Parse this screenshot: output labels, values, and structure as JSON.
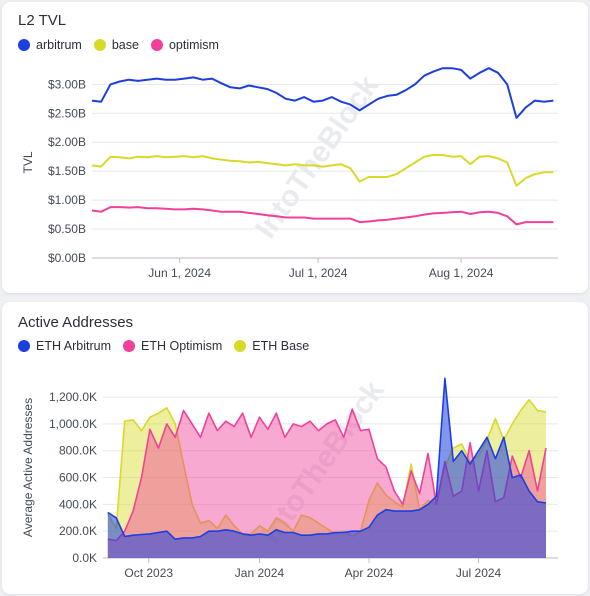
{
  "chart_data": [
    {
      "type": "line",
      "title": "L2 TVL",
      "ylabel": "TVL",
      "ylim": [
        0,
        3.3
      ],
      "yticks": [
        {
          "value": 0,
          "label": "$0.00B"
        },
        {
          "value": 0.5,
          "label": "$0.50B"
        },
        {
          "value": 1.0,
          "label": "$1.00B"
        },
        {
          "value": 1.5,
          "label": "$1.50B"
        },
        {
          "value": 2.0,
          "label": "$2.00B"
        },
        {
          "value": 2.5,
          "label": "$2.50B"
        },
        {
          "value": 3.0,
          "label": "$3.00B"
        }
      ],
      "xlim": [
        "2024-05-13",
        "2024-08-22"
      ],
      "xticks": [
        {
          "value": "2024-06-01",
          "label": "Jun 1, 2024"
        },
        {
          "value": "2024-07-01",
          "label": "Jul 1, 2024"
        },
        {
          "value": "2024-08-01",
          "label": "Aug 1, 2024"
        }
      ],
      "x": [
        "2024-05-13",
        "2024-05-15",
        "2024-05-17",
        "2024-05-19",
        "2024-05-21",
        "2024-05-23",
        "2024-05-25",
        "2024-05-27",
        "2024-05-29",
        "2024-05-31",
        "2024-06-02",
        "2024-06-04",
        "2024-06-06",
        "2024-06-08",
        "2024-06-10",
        "2024-06-12",
        "2024-06-14",
        "2024-06-16",
        "2024-06-18",
        "2024-06-20",
        "2024-06-22",
        "2024-06-24",
        "2024-06-26",
        "2024-06-28",
        "2024-06-30",
        "2024-07-02",
        "2024-07-04",
        "2024-07-06",
        "2024-07-08",
        "2024-07-10",
        "2024-07-12",
        "2024-07-14",
        "2024-07-16",
        "2024-07-18",
        "2024-07-20",
        "2024-07-22",
        "2024-07-24",
        "2024-07-26",
        "2024-07-28",
        "2024-07-30",
        "2024-08-01",
        "2024-08-03",
        "2024-08-05",
        "2024-08-07",
        "2024-08-09",
        "2024-08-11",
        "2024-08-13",
        "2024-08-15",
        "2024-08-17",
        "2024-08-19",
        "2024-08-21"
      ],
      "series": [
        {
          "name": "arbitrum",
          "color": "#1d3fe0",
          "values": [
            2.72,
            2.7,
            3.0,
            3.05,
            3.08,
            3.06,
            3.08,
            3.1,
            3.08,
            3.08,
            3.1,
            3.12,
            3.08,
            3.1,
            3.02,
            2.95,
            2.93,
            2.98,
            2.95,
            2.92,
            2.85,
            2.75,
            2.72,
            2.78,
            2.7,
            2.72,
            2.78,
            2.7,
            2.65,
            2.55,
            2.65,
            2.75,
            2.8,
            2.82,
            2.9,
            3.0,
            3.15,
            3.22,
            3.28,
            3.28,
            3.25,
            3.1,
            3.2,
            3.28,
            3.2,
            3.0,
            2.42,
            2.6,
            2.72,
            2.7,
            2.72
          ]
        },
        {
          "name": "base",
          "color": "#d9d92a",
          "values": [
            1.6,
            1.58,
            1.75,
            1.74,
            1.72,
            1.75,
            1.74,
            1.76,
            1.74,
            1.75,
            1.76,
            1.74,
            1.76,
            1.72,
            1.7,
            1.68,
            1.67,
            1.65,
            1.66,
            1.64,
            1.62,
            1.6,
            1.62,
            1.6,
            1.6,
            1.58,
            1.6,
            1.62,
            1.55,
            1.32,
            1.4,
            1.4,
            1.4,
            1.45,
            1.55,
            1.65,
            1.75,
            1.78,
            1.78,
            1.75,
            1.76,
            1.62,
            1.75,
            1.76,
            1.72,
            1.65,
            1.25,
            1.38,
            1.45,
            1.48,
            1.48
          ]
        },
        {
          "name": "optimism",
          "color": "#f0409a",
          "values": [
            0.82,
            0.8,
            0.88,
            0.88,
            0.87,
            0.88,
            0.86,
            0.86,
            0.85,
            0.84,
            0.84,
            0.85,
            0.84,
            0.82,
            0.8,
            0.8,
            0.8,
            0.78,
            0.76,
            0.74,
            0.72,
            0.7,
            0.7,
            0.7,
            0.68,
            0.68,
            0.68,
            0.68,
            0.68,
            0.62,
            0.63,
            0.65,
            0.66,
            0.68,
            0.7,
            0.72,
            0.75,
            0.77,
            0.78,
            0.79,
            0.8,
            0.76,
            0.79,
            0.8,
            0.78,
            0.72,
            0.58,
            0.62,
            0.62,
            0.62,
            0.62
          ]
        }
      ]
    },
    {
      "type": "area",
      "title": "Active Addresses",
      "ylabel": "Average Active Addresses",
      "ylim": [
        0,
        1350
      ],
      "yticks": [
        {
          "value": 0,
          "label": "0.0K"
        },
        {
          "value": 200,
          "label": "200.0K"
        },
        {
          "value": 400,
          "label": "400.0K"
        },
        {
          "value": 600,
          "label": "600.0K"
        },
        {
          "value": 800,
          "label": "800.0K"
        },
        {
          "value": 1000,
          "label": "1,000.0K"
        },
        {
          "value": 1200,
          "label": "1,200.0K"
        }
      ],
      "xlim": [
        "2023-08-24",
        "2024-09-05"
      ],
      "xticks": [
        {
          "value": "2023-10-01",
          "label": "Oct 2023"
        },
        {
          "value": "2024-01-01",
          "label": "Jan 2024"
        },
        {
          "value": "2024-04-01",
          "label": "Apr 2024"
        },
        {
          "value": "2024-07-01",
          "label": "Jul 2024"
        }
      ],
      "x": [
        "2023-08-28",
        "2023-09-04",
        "2023-09-11",
        "2023-09-18",
        "2023-09-25",
        "2023-10-02",
        "2023-10-09",
        "2023-10-16",
        "2023-10-23",
        "2023-10-30",
        "2023-11-06",
        "2023-11-13",
        "2023-11-20",
        "2023-11-27",
        "2023-12-04",
        "2023-12-11",
        "2023-12-18",
        "2023-12-25",
        "2024-01-01",
        "2024-01-08",
        "2024-01-15",
        "2024-01-22",
        "2024-01-29",
        "2024-02-05",
        "2024-02-12",
        "2024-02-19",
        "2024-02-26",
        "2024-03-04",
        "2024-03-11",
        "2024-03-18",
        "2024-03-25",
        "2024-04-01",
        "2024-04-08",
        "2024-04-15",
        "2024-04-22",
        "2024-04-29",
        "2024-05-06",
        "2024-05-13",
        "2024-05-20",
        "2024-05-27",
        "2024-06-03",
        "2024-06-10",
        "2024-06-17",
        "2024-06-24",
        "2024-07-01",
        "2024-07-08",
        "2024-07-15",
        "2024-07-22",
        "2024-07-29",
        "2024-08-05",
        "2024-08-12",
        "2024-08-19",
        "2024-08-26"
      ],
      "series": [
        {
          "name": "ETH Arbitrum",
          "color": "#1d3fe0",
          "values": [
            340,
            300,
            160,
            170,
            175,
            180,
            190,
            200,
            140,
            150,
            150,
            160,
            200,
            200,
            210,
            200,
            180,
            170,
            180,
            170,
            210,
            190,
            190,
            170,
            170,
            180,
            180,
            190,
            190,
            200,
            200,
            230,
            320,
            360,
            350,
            350,
            350,
            360,
            400,
            460,
            1340,
            720,
            800,
            700,
            800,
            900,
            740,
            900,
            600,
            620,
            500,
            420,
            410
          ]
        },
        {
          "name": "ETH Optimism",
          "color": "#f0409a",
          "values": [
            140,
            130,
            200,
            350,
            600,
            960,
            820,
            1000,
            900,
            1100,
            1000,
            900,
            1080,
            950,
            1020,
            980,
            1080,
            900,
            1050,
            960,
            1080,
            900,
            1000,
            980,
            1020,
            950,
            1000,
            1030,
            900,
            1110,
            950,
            960,
            740,
            680,
            500,
            400,
            650,
            480,
            780,
            400,
            720,
            460,
            500,
            860,
            500,
            800,
            420,
            450,
            760,
            600,
            800,
            500,
            820
          ]
        },
        {
          "name": "ETH Base",
          "color": "#d9d92a",
          "values": [
            330,
            220,
            1020,
            1030,
            950,
            1050,
            1080,
            1120,
            1000,
            700,
            400,
            260,
            280,
            220,
            320,
            240,
            180,
            180,
            240,
            200,
            300,
            260,
            200,
            320,
            300,
            260,
            220,
            180,
            200,
            160,
            200,
            430,
            560,
            470,
            420,
            380,
            700,
            360,
            430,
            400,
            680,
            820,
            850,
            720,
            760,
            880,
            1040,
            880,
            1000,
            1100,
            1180,
            1100,
            1090
          ]
        }
      ]
    }
  ]
}
